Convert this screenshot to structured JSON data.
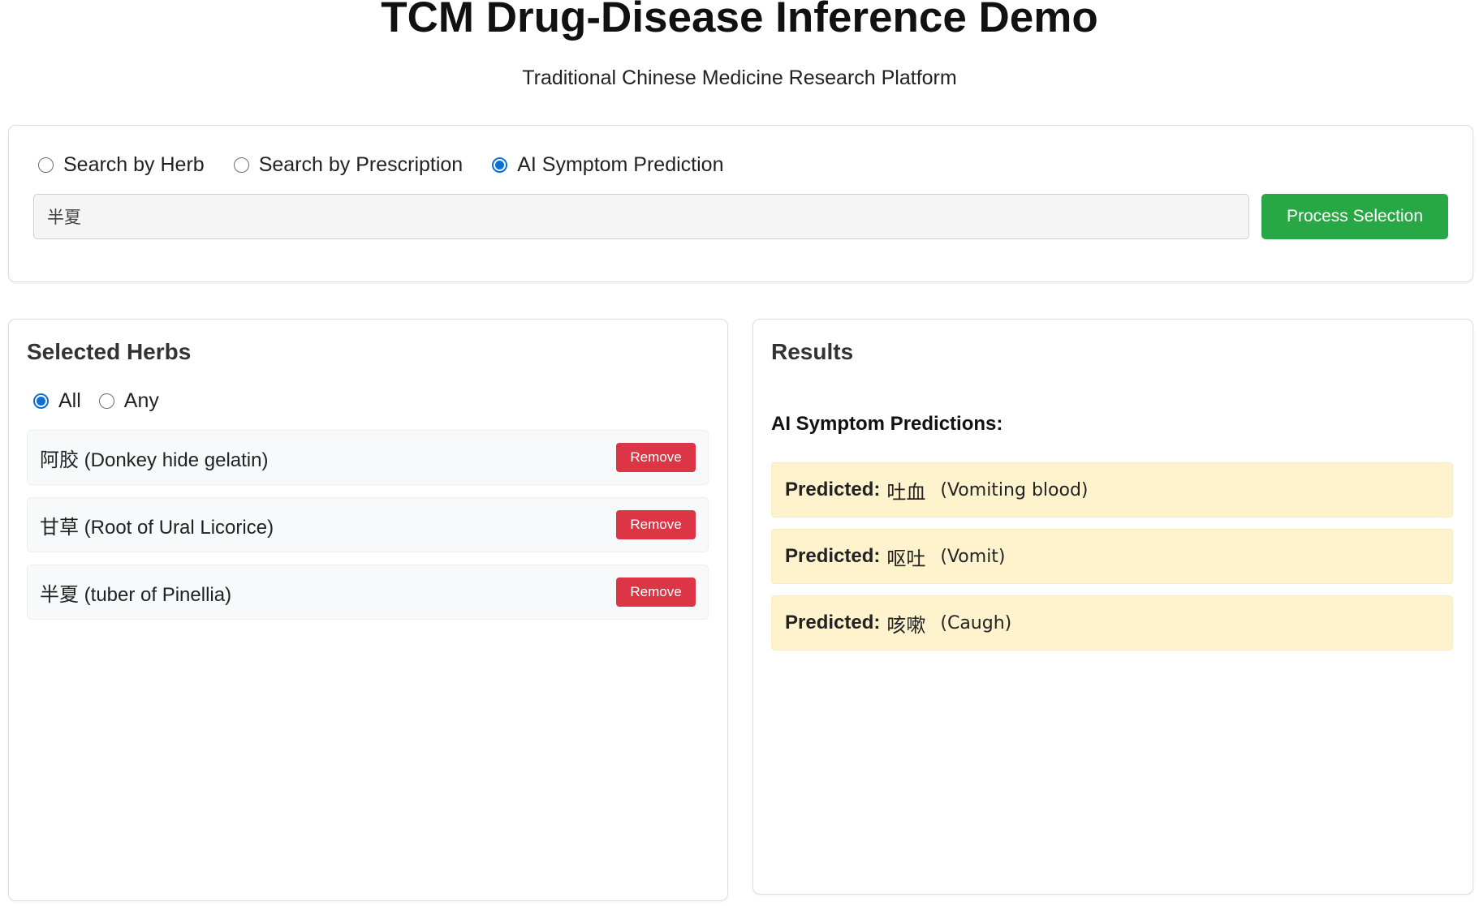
{
  "header": {
    "title": "TCM Drug-Disease Inference Demo",
    "subtitle": "Traditional Chinese Medicine Research Platform"
  },
  "search": {
    "modes": [
      {
        "label": "Search by Herb",
        "selected": false
      },
      {
        "label": "Search by Prescription",
        "selected": false
      },
      {
        "label": "AI Symptom Prediction",
        "selected": true
      }
    ],
    "input_value": "半夏",
    "process_label": "Process Selection"
  },
  "selected_herbs": {
    "title": "Selected Herbs",
    "match_modes": [
      {
        "label": "All",
        "selected": true
      },
      {
        "label": "Any",
        "selected": false
      }
    ],
    "items": [
      {
        "name": "阿胶 (Donkey hide gelatin)",
        "action": "Remove"
      },
      {
        "name": "甘草 (Root of Ural Licorice)",
        "action": "Remove"
      },
      {
        "name": "半夏 (tuber of Pinellia)",
        "action": "Remove"
      }
    ]
  },
  "results": {
    "title": "Results",
    "heading": "AI Symptom Predictions:",
    "items": [
      {
        "prefix": "Predicted:",
        "chinese": "吐血",
        "english": "(Vomiting blood)"
      },
      {
        "prefix": "Predicted:",
        "chinese": "呕吐",
        "english": "(Vomit)"
      },
      {
        "prefix": "Predicted:",
        "chinese": "咳嗽",
        "english": "(Caugh)"
      }
    ]
  },
  "colors": {
    "primary_action": "#28a745",
    "danger": "#dc3545",
    "radio_selected": "#0b6fd4",
    "prediction_bg": "#fff3cd"
  }
}
